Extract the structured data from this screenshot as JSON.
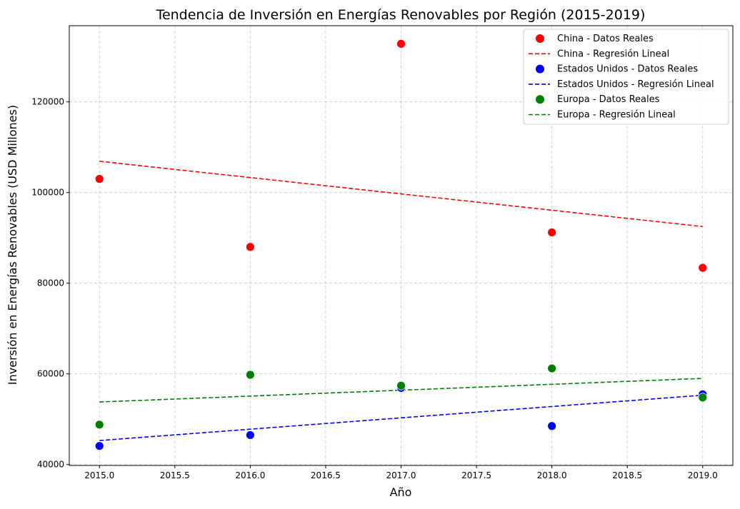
{
  "chart_data": {
    "type": "scatter",
    "title": "Tendencia de Inversión en Energías Renovables por Región (2015-2019)",
    "xlabel": "Año",
    "ylabel": "Inversión en Energías Renovables (USD Millones)",
    "xlim": [
      2014.8,
      2019.2
    ],
    "ylim": [
      39800,
      136800
    ],
    "xticks": [
      2015.0,
      2015.5,
      2016.0,
      2016.5,
      2017.0,
      2017.5,
      2018.0,
      2018.5,
      2019.0
    ],
    "xtick_labels": [
      "2015.0",
      "2015.5",
      "2016.0",
      "2016.5",
      "2017.0",
      "2017.5",
      "2018.0",
      "2018.5",
      "2019.0"
    ],
    "yticks": [
      40000,
      60000,
      80000,
      100000,
      120000
    ],
    "ytick_labels": [
      "40000",
      "60000",
      "80000",
      "100000",
      "120000"
    ],
    "grid": true,
    "grid_style": "dashed",
    "legend_position": "top-right",
    "x": [
      2015,
      2016,
      2017,
      2018,
      2019
    ],
    "series": [
      {
        "scatter_label": "China - Datos Reales",
        "line_label": "China - Regresión Lineal",
        "color": "#ff0000",
        "values": [
          103000,
          88000,
          132800,
          91200,
          83400
        ],
        "regression": [
          106900,
          92500
        ]
      },
      {
        "scatter_label": "Estados Unidos - Datos Reales",
        "line_label": "Estados Unidos - Regresión Lineal",
        "color": "#0000ff",
        "values": [
          44100,
          46500,
          56900,
          48500,
          55500
        ],
        "regression": [
          45300,
          55300
        ]
      },
      {
        "scatter_label": "Europa - Datos Reales",
        "line_label": "Europa - Regresión Lineal",
        "color": "#008000",
        "values": [
          48800,
          59800,
          57400,
          61200,
          54800
        ],
        "regression": [
          53800,
          59000
        ]
      }
    ]
  }
}
